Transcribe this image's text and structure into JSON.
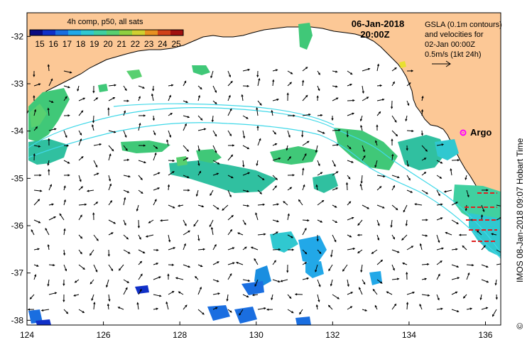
{
  "map": {
    "date_line": "06-Jan-2018",
    "time_line": "20:00Z",
    "composite_label": "4h comp, p50, all sats",
    "colorbar": {
      "ticks": [
        "15",
        "16",
        "17",
        "18",
        "19",
        "20",
        "21",
        "22",
        "23",
        "24",
        "25"
      ],
      "colors": [
        "#0a0a80",
        "#1030c8",
        "#1a6ee0",
        "#22a8e8",
        "#30c8d0",
        "#40d0a0",
        "#58d070",
        "#90d040",
        "#d0d030",
        "#e89020",
        "#d04018",
        "#a01010"
      ]
    },
    "legend": {
      "line1": "GSLA (0.1m contours)",
      "line2": "and velocities for",
      "line3": "02-Jan 00:00Z",
      "line4": "0.5m/s (1kt 24h)"
    },
    "argo_label": "Argo",
    "credit": "IMOS 08-Jan-2018 09:07 Hobart Time",
    "copyright": "©",
    "x_ticks": [
      "124",
      "126",
      "128",
      "130",
      "132",
      "134",
      "136"
    ],
    "y_ticks": [
      "-32",
      "-33",
      "-34",
      "-35",
      "-36",
      "-37",
      "-38"
    ],
    "colors": {
      "land": "#fcc896",
      "contour": "#40d8e8",
      "argo": "#ff00ff",
      "arrow": "#000000"
    }
  }
}
